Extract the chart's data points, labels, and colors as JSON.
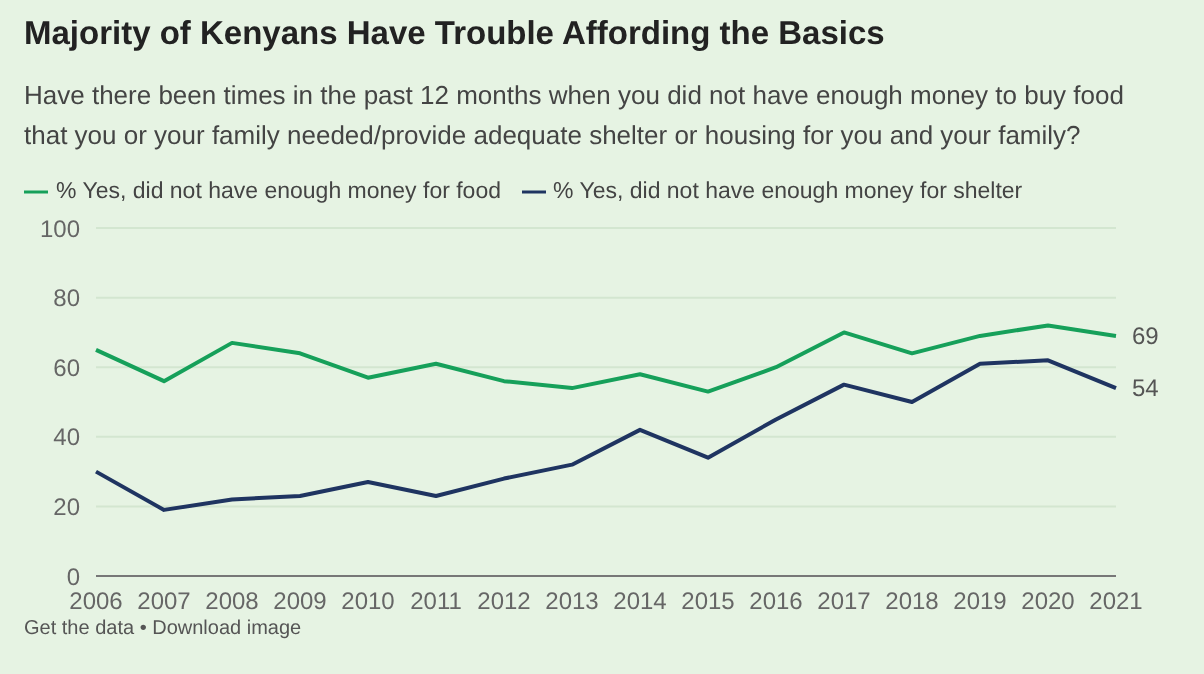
{
  "chart_data": {
    "type": "line",
    "title": "Majority of Kenyans Have Trouble Affording the Basics",
    "subtitle": "Have there been times in the past 12 months when you did not have enough money to buy food that you or your family needed/provide adequate shelter or housing for you and your family?",
    "categories": [
      "2006",
      "2007",
      "2008",
      "2009",
      "2010",
      "2011",
      "2012",
      "2013",
      "2014",
      "2015",
      "2016",
      "2017",
      "2018",
      "2019",
      "2020",
      "2021"
    ],
    "series": [
      {
        "name": "% Yes, did not have enough money for food",
        "color": "#16a05a",
        "values": [
          65,
          56,
          67,
          64,
          57,
          61,
          56,
          54,
          58,
          53,
          60,
          70,
          64,
          69,
          72,
          69
        ],
        "value_labels": [
          null,
          null,
          null,
          null,
          null,
          null,
          null,
          null,
          null,
          null,
          null,
          null,
          null,
          null,
          null,
          "69"
        ]
      },
      {
        "name": "% Yes, did not have enough money for shelter",
        "color": "#1f3461",
        "values": [
          30,
          19,
          22,
          23,
          27,
          23,
          28,
          32,
          42,
          34,
          45,
          55,
          50,
          61,
          62,
          54
        ],
        "value_labels": [
          null,
          null,
          null,
          null,
          null,
          null,
          null,
          null,
          null,
          null,
          null,
          null,
          null,
          null,
          null,
          "54"
        ]
      }
    ],
    "ylim": [
      0,
      100
    ],
    "yticks": [
      0,
      20,
      40,
      60,
      80,
      100
    ],
    "grid": "y",
    "legend": "top left",
    "marker": "none",
    "line_style": "solid",
    "annotations": [
      "Get the data • Download image"
    ]
  }
}
